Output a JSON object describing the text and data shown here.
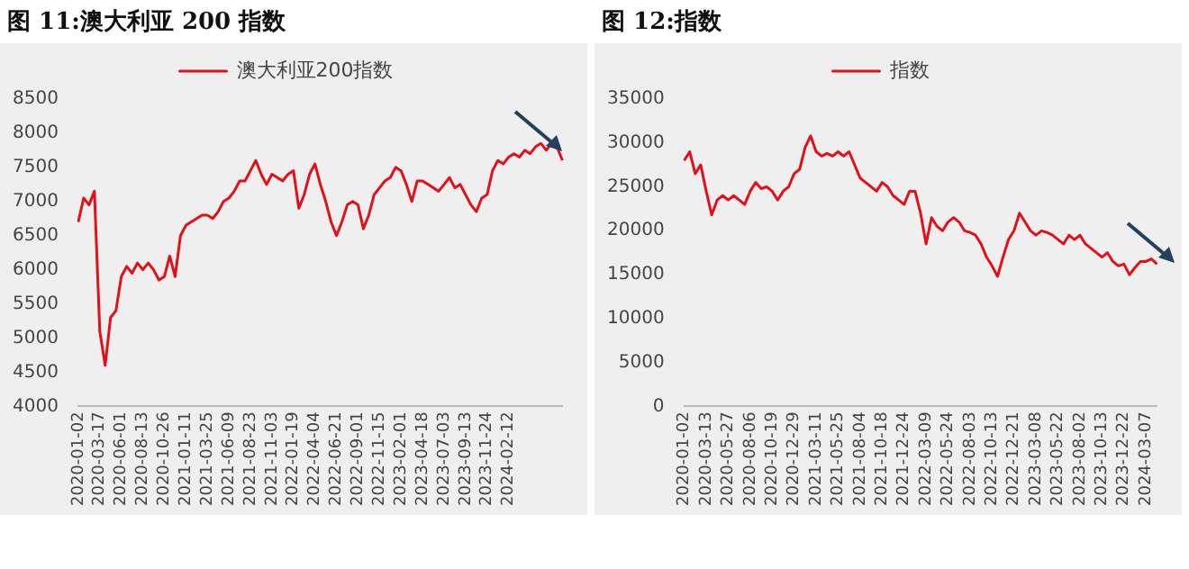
{
  "chart_data": [
    {
      "type": "line",
      "title": "图 11:澳大利亚 200 指数",
      "legend": "top",
      "grid": false,
      "marker": "none",
      "line_style": "solid",
      "categories": [
        "2020-01-02",
        null,
        null,
        null,
        "2020-03-17",
        null,
        null,
        null,
        "2020-06-01",
        null,
        null,
        null,
        "2020-08-13",
        null,
        null,
        null,
        "2020-10-26",
        null,
        null,
        null,
        "2021-01-11",
        null,
        null,
        null,
        "2021-03-25",
        null,
        null,
        null,
        "2021-06-09",
        null,
        null,
        null,
        "2021-08-23",
        null,
        null,
        null,
        "2021-11-03",
        null,
        null,
        null,
        "2022-01-19",
        null,
        null,
        null,
        "2022-04-04",
        null,
        null,
        null,
        "2022-06-21",
        null,
        null,
        null,
        "2022-09-01",
        null,
        null,
        null,
        "2022-11-15",
        null,
        null,
        null,
        "2023-02-01",
        null,
        null,
        null,
        "2023-04-18",
        null,
        null,
        null,
        "2023-07-03",
        null,
        null,
        null,
        "2023-09-13",
        null,
        null,
        null,
        "2023-11-24",
        null,
        null,
        null,
        "2024-02-12",
        null,
        null,
        null,
        null,
        null,
        null,
        null,
        null,
        null,
        null
      ],
      "ylim": [
        4000,
        8500
      ],
      "yticks": [
        4000,
        4500,
        5000,
        5500,
        6000,
        6500,
        7000,
        7500,
        8000,
        8500
      ],
      "series": [
        {
          "name": "澳大利亚200指数",
          "color": "#e3101a",
          "values": [
            6700,
            7050,
            6950,
            7150,
            5100,
            4600,
            5300,
            5400,
            5900,
            6050,
            5950,
            6100,
            6000,
            6100,
            6000,
            5850,
            5900,
            6200,
            5900,
            6500,
            6650,
            6700,
            6750,
            6800,
            6800,
            6750,
            6850,
            7000,
            7050,
            7150,
            7300,
            7300,
            7450,
            7600,
            7400,
            7250,
            7400,
            7350,
            7300,
            7400,
            7450,
            6900,
            7100,
            7400,
            7550,
            7250,
            7000,
            6700,
            6500,
            6700,
            6950,
            7000,
            6950,
            6600,
            6800,
            7100,
            7200,
            7300,
            7350,
            7500,
            7450,
            7250,
            7000,
            7300,
            7300,
            7250,
            7200,
            7150,
            7250,
            7350,
            7200,
            7250,
            7100,
            6950,
            6850,
            7050,
            7100,
            7450,
            7600,
            7550,
            7650,
            7700,
            7650,
            7750,
            7700,
            7800,
            7850,
            7750,
            7850,
            7800,
            7600
          ]
        }
      ]
    },
    {
      "type": "line",
      "title": "图 12:指数",
      "legend": "top",
      "grid": false,
      "marker": "none",
      "line_style": "solid",
      "categories": [
        "2020-01-02",
        null,
        null,
        null,
        "2020-03-13",
        null,
        null,
        null,
        "2020-05-27",
        null,
        null,
        null,
        "2020-08-06",
        null,
        null,
        null,
        "2020-10-19",
        null,
        null,
        null,
        "2020-12-29",
        null,
        null,
        null,
        "2021-03-11",
        null,
        null,
        null,
        "2021-05-25",
        null,
        null,
        null,
        "2021-08-04",
        null,
        null,
        null,
        "2021-10-18",
        null,
        null,
        null,
        "2021-12-24",
        null,
        null,
        null,
        "2022-03-09",
        null,
        null,
        null,
        "2022-05-24",
        null,
        null,
        null,
        "2022-08-03",
        null,
        null,
        null,
        "2022-10-13",
        null,
        null,
        null,
        "2022-12-21",
        null,
        null,
        null,
        "2023-03-08",
        null,
        null,
        null,
        "2023-05-22",
        null,
        null,
        null,
        "2023-08-02",
        null,
        null,
        null,
        "2023-10-13",
        null,
        null,
        null,
        "2023-12-22",
        null,
        null,
        null,
        "2024-03-07",
        null,
        null
      ],
      "ylim": [
        0,
        35000
      ],
      "yticks": [
        0,
        5000,
        10000,
        15000,
        20000,
        25000,
        30000,
        35000
      ],
      "series": [
        {
          "name": "指数",
          "color": "#e3101a",
          "values": [
            28000,
            29000,
            26500,
            27500,
            24500,
            21800,
            23500,
            24000,
            23500,
            24000,
            23500,
            23000,
            24500,
            25500,
            24800,
            25000,
            24500,
            23500,
            24500,
            25000,
            26500,
            27000,
            29500,
            30800,
            29000,
            28500,
            28800,
            28500,
            29000,
            28500,
            29000,
            27500,
            26000,
            25500,
            25000,
            24500,
            25500,
            25000,
            24000,
            23500,
            23000,
            24500,
            24500,
            22000,
            18500,
            21500,
            20500,
            20000,
            21000,
            21500,
            21000,
            20000,
            19800,
            19500,
            18500,
            17000,
            16000,
            14800,
            17000,
            19000,
            20000,
            22000,
            21000,
            20000,
            19500,
            20000,
            19800,
            19500,
            19000,
            18500,
            19500,
            19000,
            19500,
            18500,
            18000,
            17500,
            17000,
            17500,
            16500,
            16000,
            16200,
            15000,
            15800,
            16500,
            16500,
            16800,
            16200
          ]
        }
      ]
    }
  ]
}
